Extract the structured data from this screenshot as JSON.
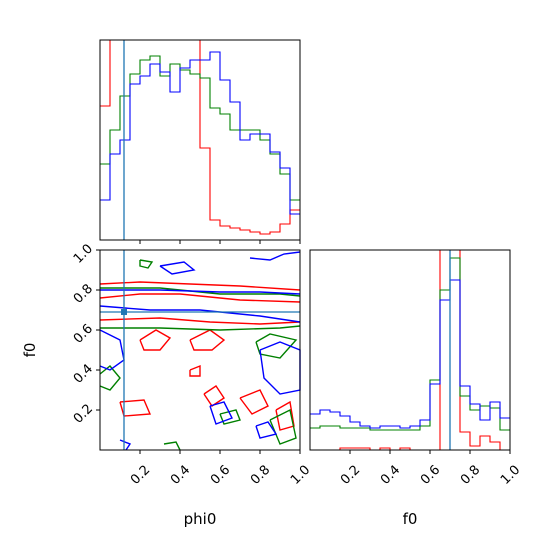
{
  "chart_data": [
    {
      "type": "histogram",
      "panel": "phi0-marginal",
      "xlim": [
        0.0,
        1.0
      ],
      "truth_x": 0.12,
      "bins": [
        0.0,
        0.05,
        0.1,
        0.15,
        0.2,
        0.25,
        0.3,
        0.35,
        0.4,
        0.45,
        0.5,
        0.55,
        0.6,
        0.65,
        0.7,
        0.75,
        0.8,
        0.85,
        0.9,
        0.95,
        1.0
      ],
      "series": [
        {
          "color": "#ff0000",
          "values": [
            0.67,
            1.0,
            1.0,
            1.0,
            1.0,
            1.0,
            1.0,
            1.0,
            1.0,
            1.0,
            0.46,
            0.1,
            0.07,
            0.06,
            0.05,
            0.04,
            0.03,
            0.04,
            0.08,
            0.15
          ]
        },
        {
          "color": "#008000",
          "values": [
            0.38,
            0.55,
            0.72,
            0.83,
            0.9,
            0.92,
            0.82,
            0.88,
            0.85,
            0.83,
            0.81,
            0.66,
            0.63,
            0.55,
            0.55,
            0.55,
            0.5,
            0.43,
            0.33,
            0.2
          ]
        },
        {
          "color": "#0000ff",
          "values": [
            0.2,
            0.43,
            0.5,
            0.78,
            0.82,
            0.88,
            0.84,
            0.74,
            0.86,
            0.9,
            0.9,
            0.94,
            0.8,
            0.69,
            0.5,
            0.53,
            0.53,
            0.44,
            0.36,
            0.13
          ]
        }
      ]
    },
    {
      "type": "contour",
      "panel": "phi0-f0-2d",
      "xlabel": "phi0",
      "ylabel": "f0",
      "xlim": [
        0.0,
        1.0
      ],
      "ylim": [
        0.0,
        1.0
      ],
      "xticks": [
        0.2,
        0.4,
        0.6,
        0.8,
        1.0
      ],
      "yticks": [
        0.2,
        0.4,
        0.6,
        0.8,
        1.0
      ],
      "xtick_labels": [
        "0.2",
        "0.4",
        "0.6",
        "0.8",
        "1.0"
      ],
      "ytick_labels": [
        "0.2",
        "0.4",
        "0.6",
        "0.8",
        "1.0"
      ],
      "truth_x": 0.12,
      "truth_y": 0.69,
      "series": [
        {
          "color": "#ff0000",
          "contours": [
            [
              [
                0.0,
                0.83
              ],
              [
                0.2,
                0.84
              ],
              [
                0.45,
                0.83
              ],
              [
                0.7,
                0.82
              ],
              [
                1.0,
                0.8
              ]
            ],
            [
              [
                0.0,
                0.76
              ],
              [
                0.2,
                0.78
              ],
              [
                0.4,
                0.78
              ],
              [
                0.7,
                0.75
              ],
              [
                1.0,
                0.74
              ]
            ],
            [
              [
                0.0,
                0.65
              ],
              [
                0.3,
                0.66
              ],
              [
                0.55,
                0.64
              ],
              [
                0.8,
                0.63
              ],
              [
                1.0,
                0.64
              ]
            ],
            [
              [
                0.2,
                0.55
              ],
              [
                0.28,
                0.6
              ],
              [
                0.35,
                0.56
              ],
              [
                0.3,
                0.5
              ],
              [
                0.22,
                0.5
              ],
              [
                0.2,
                0.55
              ]
            ],
            [
              [
                0.45,
                0.55
              ],
              [
                0.55,
                0.6
              ],
              [
                0.62,
                0.55
              ],
              [
                0.56,
                0.5
              ],
              [
                0.47,
                0.5
              ],
              [
                0.45,
                0.55
              ]
            ],
            [
              [
                0.52,
                0.28
              ],
              [
                0.58,
                0.32
              ],
              [
                0.62,
                0.26
              ],
              [
                0.56,
                0.22
              ],
              [
                0.52,
                0.28
              ]
            ],
            [
              [
                0.7,
                0.26
              ],
              [
                0.8,
                0.3
              ],
              [
                0.84,
                0.22
              ],
              [
                0.76,
                0.18
              ],
              [
                0.7,
                0.26
              ]
            ],
            [
              [
                0.88,
                0.2
              ],
              [
                0.95,
                0.24
              ],
              [
                0.97,
                0.12
              ],
              [
                0.9,
                0.1
              ],
              [
                0.88,
                0.2
              ]
            ],
            [
              [
                0.1,
                0.24
              ],
              [
                0.22,
                0.25
              ],
              [
                0.25,
                0.18
              ],
              [
                0.12,
                0.17
              ],
              [
                0.1,
                0.24
              ]
            ],
            [
              [
                0.45,
                0.4
              ],
              [
                0.5,
                0.42
              ],
              [
                0.5,
                0.37
              ],
              [
                0.45,
                0.37
              ],
              [
                0.45,
                0.4
              ]
            ]
          ]
        },
        {
          "color": "#008000",
          "contours": [
            [
              [
                0.0,
                0.81
              ],
              [
                0.3,
                0.81
              ],
              [
                0.6,
                0.78
              ],
              [
                0.9,
                0.78
              ],
              [
                1.0,
                0.77
              ]
            ],
            [
              [
                0.0,
                0.61
              ],
              [
                0.3,
                0.61
              ],
              [
                0.6,
                0.6
              ],
              [
                0.9,
                0.61
              ],
              [
                1.0,
                0.62
              ]
            ],
            [
              [
                0.0,
                0.38
              ],
              [
                0.05,
                0.42
              ],
              [
                0.1,
                0.36
              ],
              [
                0.05,
                0.3
              ],
              [
                0.0,
                0.32
              ]
            ],
            [
              [
                0.78,
                0.54
              ],
              [
                0.85,
                0.58
              ],
              [
                0.98,
                0.55
              ],
              [
                0.9,
                0.46
              ],
              [
                0.8,
                0.48
              ],
              [
                0.78,
                0.54
              ]
            ],
            [
              [
                0.6,
                0.18
              ],
              [
                0.68,
                0.2
              ],
              [
                0.7,
                0.15
              ],
              [
                0.62,
                0.13
              ],
              [
                0.6,
                0.18
              ]
            ],
            [
              [
                0.85,
                0.15
              ],
              [
                0.95,
                0.2
              ],
              [
                0.98,
                0.06
              ],
              [
                0.9,
                0.03
              ],
              [
                0.85,
                0.15
              ]
            ],
            [
              [
                0.32,
                0.03
              ],
              [
                0.38,
                0.04
              ],
              [
                0.4,
                0.0
              ]
            ],
            [
              [
                0.2,
                0.95
              ],
              [
                0.26,
                0.94
              ],
              [
                0.24,
                0.91
              ],
              [
                0.2,
                0.92
              ],
              [
                0.2,
                0.95
              ]
            ]
          ]
        },
        {
          "color": "#0000ff",
          "contours": [
            [
              [
                0.0,
                0.8
              ],
              [
                0.3,
                0.8
              ],
              [
                0.6,
                0.79
              ],
              [
                0.8,
                0.79
              ],
              [
                1.0,
                0.78
              ]
            ],
            [
              [
                0.0,
                0.72
              ],
              [
                0.25,
                0.7
              ],
              [
                0.5,
                0.7
              ],
              [
                0.8,
                0.67
              ],
              [
                1.0,
                0.64
              ]
            ],
            [
              [
                0.0,
                0.6
              ],
              [
                0.1,
                0.55
              ],
              [
                0.12,
                0.45
              ],
              [
                0.05,
                0.4
              ],
              [
                0.0,
                0.42
              ]
            ],
            [
              [
                0.8,
                0.5
              ],
              [
                0.9,
                0.54
              ],
              [
                1.0,
                0.5
              ],
              [
                1.0,
                0.3
              ],
              [
                0.9,
                0.28
              ],
              [
                0.82,
                0.36
              ],
              [
                0.8,
                0.5
              ]
            ],
            [
              [
                0.3,
                0.92
              ],
              [
                0.42,
                0.94
              ],
              [
                0.47,
                0.9
              ],
              [
                0.36,
                0.88
              ],
              [
                0.3,
                0.92
              ]
            ],
            [
              [
                0.55,
                0.22
              ],
              [
                0.62,
                0.24
              ],
              [
                0.66,
                0.16
              ],
              [
                0.58,
                0.13
              ],
              [
                0.55,
                0.22
              ]
            ],
            [
              [
                0.78,
                0.12
              ],
              [
                0.84,
                0.14
              ],
              [
                0.88,
                0.08
              ],
              [
                0.8,
                0.06
              ],
              [
                0.78,
                0.12
              ]
            ],
            [
              [
                0.1,
                0.05
              ],
              [
                0.15,
                0.03
              ],
              [
                0.13,
                0.0
              ]
            ],
            [
              [
                0.75,
                0.96
              ],
              [
                0.85,
                0.95
              ],
              [
                0.92,
                0.98
              ],
              [
                1.0,
                0.99
              ]
            ]
          ]
        }
      ]
    },
    {
      "type": "histogram",
      "panel": "f0-marginal",
      "xlabel": "f0",
      "xlim": [
        0.0,
        1.0
      ],
      "xticks": [
        0.2,
        0.4,
        0.6,
        0.8,
        1.0
      ],
      "xtick_labels": [
        "0.2",
        "0.4",
        "0.6",
        "0.8",
        "1.0"
      ],
      "truth_x": 0.7,
      "bins": [
        0.0,
        0.05,
        0.1,
        0.15,
        0.2,
        0.25,
        0.3,
        0.35,
        0.4,
        0.45,
        0.5,
        0.55,
        0.6,
        0.65,
        0.7,
        0.75,
        0.8,
        0.85,
        0.9,
        0.95,
        1.0
      ],
      "series": [
        {
          "color": "#ff0000",
          "values": [
            0.0,
            0.0,
            0.0,
            0.01,
            0.01,
            0.01,
            0.0,
            0.01,
            0.0,
            0.01,
            0.0,
            0.0,
            0.0,
            1.0,
            1.0,
            0.09,
            0.02,
            0.07,
            0.04,
            0.0
          ]
        },
        {
          "color": "#008000",
          "values": [
            0.11,
            0.12,
            0.12,
            0.11,
            0.11,
            0.11,
            0.1,
            0.1,
            0.1,
            0.1,
            0.1,
            0.12,
            0.35,
            0.8,
            0.96,
            0.27,
            0.2,
            0.22,
            0.21,
            0.1
          ]
        },
        {
          "color": "#0000ff",
          "values": [
            0.18,
            0.2,
            0.19,
            0.17,
            0.14,
            0.12,
            0.11,
            0.12,
            0.12,
            0.11,
            0.12,
            0.15,
            0.33,
            0.75,
            0.85,
            0.32,
            0.23,
            0.15,
            0.24,
            0.16
          ]
        }
      ]
    }
  ]
}
